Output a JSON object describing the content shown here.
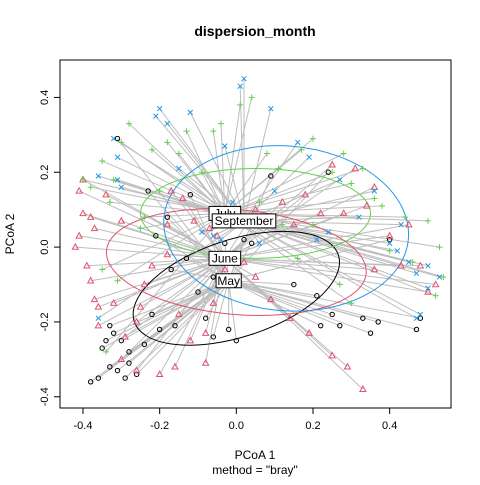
{
  "chart_data": {
    "type": "scatter",
    "title": "dispersion_month",
    "xlabel": "PCoA 1",
    "sublabel": "method = \"bray\"",
    "ylabel": "PCoA 2",
    "xlim": [
      -0.46,
      0.56
    ],
    "ylim": [
      -0.43,
      0.5
    ],
    "xticks": [
      -0.4,
      -0.2,
      0.0,
      0.2,
      0.4
    ],
    "yticks": [
      -0.4,
      -0.2,
      0.0,
      0.2,
      0.4
    ],
    "grid": false,
    "series": [
      {
        "name": "May",
        "color": "#000000",
        "marker": "circle",
        "centroid": [
          -0.02,
          -0.09
        ],
        "ellipse": {
          "cx": 0.0,
          "cy": -0.11,
          "rx": 0.28,
          "ry": 0.13,
          "angle": 18
        },
        "points": [
          [
            -0.38,
            -0.36
          ],
          [
            -0.36,
            -0.35
          ],
          [
            -0.33,
            -0.32
          ],
          [
            -0.31,
            -0.33
          ],
          [
            -0.35,
            -0.27
          ],
          [
            -0.34,
            -0.25
          ],
          [
            -0.32,
            -0.23
          ],
          [
            -0.33,
            -0.21
          ],
          [
            -0.3,
            -0.25
          ],
          [
            -0.28,
            -0.31
          ],
          [
            -0.29,
            -0.35
          ],
          [
            -0.26,
            -0.34
          ],
          [
            -0.28,
            -0.28
          ],
          [
            -0.24,
            -0.26
          ],
          [
            -0.22,
            -0.18
          ],
          [
            -0.2,
            -0.22
          ],
          [
            -0.16,
            -0.21
          ],
          [
            -0.17,
            -0.06
          ],
          [
            -0.13,
            -0.03
          ],
          [
            -0.21,
            0.03
          ],
          [
            -0.23,
            0.15
          ],
          [
            -0.12,
            0.14
          ],
          [
            -0.18,
            0.08
          ],
          [
            -0.1,
            -0.12
          ],
          [
            -0.08,
            -0.19
          ],
          [
            -0.06,
            -0.24
          ],
          [
            -0.02,
            -0.22
          ],
          [
            0.0,
            -0.25
          ],
          [
            -0.03,
            0.01
          ],
          [
            0.02,
            0.02
          ],
          [
            0.04,
            0.01
          ],
          [
            -0.03,
            -0.1
          ],
          [
            0.09,
            0.19
          ],
          [
            0.24,
            0.2
          ],
          [
            0.25,
            -0.18
          ],
          [
            0.27,
            -0.21
          ],
          [
            0.22,
            -0.21
          ],
          [
            0.33,
            -0.19
          ],
          [
            0.35,
            -0.23
          ],
          [
            0.37,
            -0.2
          ],
          [
            0.4,
            0.02
          ],
          [
            0.47,
            -0.22
          ],
          [
            0.48,
            -0.19
          ],
          [
            -0.31,
            0.29
          ],
          [
            0.21,
            -0.13
          ],
          [
            -0.06,
            -0.08
          ],
          [
            0.15,
            -0.1
          ]
        ]
      },
      {
        "name": "June",
        "color": "#df536b",
        "marker": "triangle",
        "centroid": [
          -0.03,
          -0.03
        ],
        "ellipse": {
          "cx": 0.0,
          "cy": -0.04,
          "rx": 0.34,
          "ry": 0.14,
          "angle": -5
        },
        "points": [
          [
            -0.41,
            0.03
          ],
          [
            -0.4,
            0.09
          ],
          [
            -0.42,
            0.0
          ],
          [
            -0.37,
            0.05
          ],
          [
            -0.38,
            0.08
          ],
          [
            -0.39,
            -0.05
          ],
          [
            -0.38,
            -0.09
          ],
          [
            -0.37,
            -0.14
          ],
          [
            -0.36,
            -0.16
          ],
          [
            -0.36,
            -0.21
          ],
          [
            -0.32,
            -0.15
          ],
          [
            -0.3,
            -0.3
          ],
          [
            -0.29,
            -0.24
          ],
          [
            -0.26,
            -0.2
          ],
          [
            -0.25,
            -0.16
          ],
          [
            -0.24,
            -0.1
          ],
          [
            -0.22,
            -0.05
          ],
          [
            -0.17,
            0.15
          ],
          [
            -0.14,
            0.13
          ],
          [
            -0.11,
            0.07
          ],
          [
            -0.07,
            0.05
          ],
          [
            -0.05,
            0.03
          ],
          [
            -0.03,
            -0.06
          ],
          [
            -0.06,
            -0.15
          ],
          [
            -0.08,
            -0.23
          ],
          [
            -0.12,
            -0.25
          ],
          [
            -0.16,
            -0.32
          ],
          [
            -0.2,
            -0.34
          ],
          [
            -0.26,
            -0.33
          ],
          [
            -0.4,
            0.18
          ],
          [
            -0.41,
            0.15
          ],
          [
            -0.34,
            0.14
          ],
          [
            -0.3,
            0.07
          ],
          [
            -0.18,
            -0.02
          ],
          [
            0.05,
            0.1
          ],
          [
            0.12,
            0.12
          ],
          [
            0.18,
            0.14
          ],
          [
            0.22,
            0.09
          ],
          [
            0.28,
            0.09
          ],
          [
            0.25,
            0.22
          ],
          [
            0.31,
            0.21
          ],
          [
            0.36,
            0.16
          ],
          [
            0.34,
            0.11
          ],
          [
            0.4,
            0.03
          ],
          [
            0.45,
            0.06
          ],
          [
            0.48,
            -0.05
          ],
          [
            0.52,
            -0.1
          ],
          [
            0.5,
            -0.12
          ],
          [
            0.43,
            -0.05
          ],
          [
            0.36,
            -0.06
          ],
          [
            0.33,
            -0.38
          ],
          [
            0.29,
            -0.32
          ],
          [
            0.25,
            -0.29
          ],
          [
            0.19,
            -0.23
          ],
          [
            0.14,
            -0.19
          ],
          [
            0.09,
            -0.14
          ],
          [
            0.05,
            -0.08
          ],
          [
            0.02,
            -0.04
          ],
          [
            -0.18,
            0.06
          ],
          [
            -0.15,
            -0.18
          ],
          [
            -0.08,
            -0.31
          ],
          [
            0.15,
            0.06
          ]
        ]
      },
      {
        "name": "July",
        "color": "#61d04f",
        "marker": "plus",
        "centroid": [
          -0.03,
          0.09
        ],
        "ellipse": {
          "cx": 0.05,
          "cy": 0.09,
          "rx": 0.3,
          "ry": 0.12,
          "angle": 0
        },
        "points": [
          [
            -0.4,
            0.18
          ],
          [
            -0.38,
            0.16
          ],
          [
            -0.35,
            0.23
          ],
          [
            -0.32,
            0.18
          ],
          [
            -0.3,
            0.28
          ],
          [
            -0.28,
            0.33
          ],
          [
            -0.22,
            0.26
          ],
          [
            -0.18,
            0.28
          ],
          [
            -0.13,
            0.31
          ],
          [
            -0.06,
            0.31
          ],
          [
            -0.04,
            0.33
          ],
          [
            0.01,
            0.38
          ],
          [
            0.04,
            0.4
          ],
          [
            0.08,
            0.25
          ],
          [
            0.11,
            0.21
          ],
          [
            0.17,
            0.26
          ],
          [
            0.2,
            0.29
          ],
          [
            0.25,
            0.2
          ],
          [
            0.28,
            0.25
          ],
          [
            0.33,
            0.21
          ],
          [
            0.3,
            0.17
          ],
          [
            0.36,
            0.13
          ],
          [
            0.38,
            0.11
          ],
          [
            0.44,
            0.08
          ],
          [
            0.5,
            0.07
          ],
          [
            0.53,
            0.0
          ],
          [
            0.54,
            -0.08
          ],
          [
            0.52,
            -0.13
          ],
          [
            0.46,
            -0.04
          ],
          [
            0.3,
            -0.15
          ],
          [
            0.27,
            -0.1
          ],
          [
            0.16,
            -0.03
          ],
          [
            0.12,
            0.06
          ],
          [
            -0.09,
            0.2
          ],
          [
            -0.2,
            0.15
          ],
          [
            -0.24,
            0.08
          ],
          [
            -0.31,
            -0.09
          ],
          [
            -0.35,
            -0.06
          ],
          [
            -0.34,
            -0.28
          ],
          [
            -0.33,
            0.12
          ],
          [
            -0.25,
            0.05
          ],
          [
            -0.15,
            0.25
          ],
          [
            0.06,
            0.12
          ],
          [
            0.2,
            0.06
          ],
          [
            0.4,
            -0.01
          ]
        ]
      },
      {
        "name": "September",
        "color": "#2297e6",
        "marker": "cross",
        "centroid": [
          0.02,
          0.07
        ],
        "ellipse": {
          "cx": 0.13,
          "cy": 0.05,
          "rx": 0.32,
          "ry": 0.22,
          "angle": -5
        },
        "points": [
          [
            0.02,
            0.45
          ],
          [
            0.01,
            0.43
          ],
          [
            -0.2,
            0.37
          ],
          [
            -0.21,
            0.35
          ],
          [
            -0.12,
            0.36
          ],
          [
            -0.18,
            0.33
          ],
          [
            -0.32,
            0.29
          ],
          [
            -0.31,
            0.24
          ],
          [
            -0.36,
            0.19
          ],
          [
            -0.31,
            0.18
          ],
          [
            -0.3,
            0.16
          ],
          [
            0.09,
            0.37
          ],
          [
            0.16,
            0.28
          ],
          [
            0.19,
            0.24
          ],
          [
            0.27,
            0.18
          ],
          [
            0.36,
            0.15
          ],
          [
            0.4,
            0.01
          ],
          [
            0.42,
            -0.01
          ],
          [
            0.45,
            -0.04
          ],
          [
            0.5,
            -0.05
          ],
          [
            0.47,
            -0.07
          ],
          [
            0.5,
            -0.11
          ],
          [
            0.53,
            -0.08
          ],
          [
            0.48,
            -0.18
          ],
          [
            0.47,
            -0.19
          ],
          [
            0.21,
            0.02
          ],
          [
            0.24,
            0.04
          ],
          [
            0.06,
            0.01
          ],
          [
            -0.04,
            0.02
          ],
          [
            -0.06,
            0.03
          ],
          [
            -0.09,
            0.04
          ],
          [
            -0.36,
            -0.19
          ],
          [
            -0.03,
            0.27
          ],
          [
            -0.15,
            0.21
          ],
          [
            0.32,
            0.08
          ],
          [
            0.43,
            0.06
          ],
          [
            0.1,
            0.15
          ],
          [
            -0.01,
            0.12
          ]
        ]
      }
    ]
  }
}
